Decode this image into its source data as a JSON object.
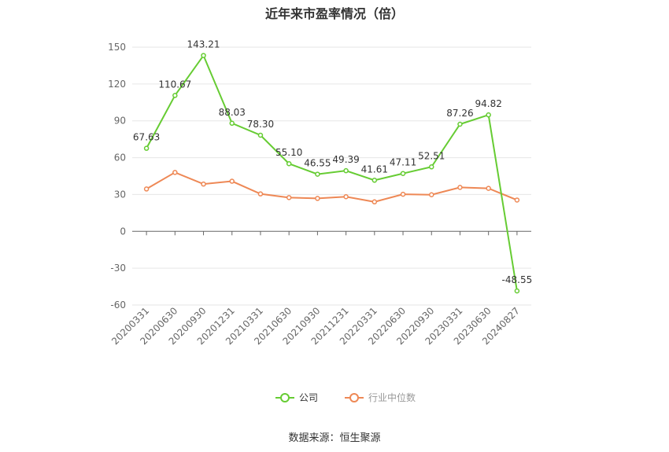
{
  "chart_data": {
    "type": "line",
    "title": "近年来市盈率情况（倍）",
    "categories": [
      "20200331",
      "20200630",
      "20200930",
      "20201231",
      "20210331",
      "20210630",
      "20210930",
      "20211231",
      "20220331",
      "20220630",
      "20220930",
      "20230331",
      "20230630",
      "20240827"
    ],
    "series": [
      {
        "name": "公司",
        "color": "#66cc33",
        "values": [
          67.63,
          110.67,
          143.21,
          88.03,
          78.3,
          55.1,
          46.55,
          49.39,
          41.61,
          47.11,
          52.51,
          87.26,
          94.82,
          -48.55
        ],
        "labels": [
          "67.63",
          "110.67",
          "143.21",
          "88.03",
          "78.30",
          "55.10",
          "46.55",
          "49.39",
          "41.61",
          "47.11",
          "52.51",
          "87.26",
          "94.82",
          "-48.55"
        ]
      },
      {
        "name": "行业中位数",
        "color": "#ee8855",
        "values": [
          34.5,
          48.0,
          38.5,
          40.8,
          30.5,
          27.5,
          26.8,
          28.2,
          24.0,
          30.2,
          29.8,
          35.8,
          35.0,
          25.5
        ]
      }
    ],
    "ylim": [
      -60,
      150
    ],
    "yticks": [
      -60,
      -30,
      0,
      30,
      60,
      90,
      120,
      150
    ],
    "grid": true,
    "legend": "bottom"
  },
  "source": "数据来源：恒生聚源"
}
